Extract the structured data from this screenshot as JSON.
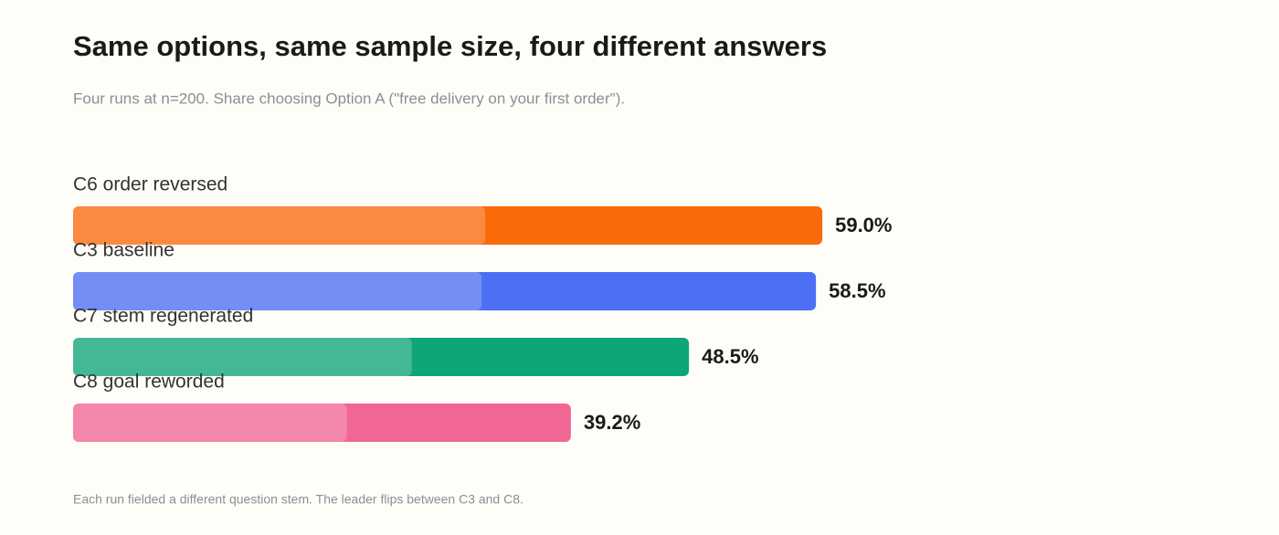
{
  "chart_data": {
    "type": "bar",
    "orientation": "horizontal",
    "title": "Same options, same sample size, four different answers",
    "subtitle": "Four runs at n=200. Share choosing Option A (\"free delivery on your first order\").",
    "categories": [
      "C6 order reversed",
      "C3 baseline",
      "C7 stem regenerated",
      "C8 goal reworded"
    ],
    "values": [
      59.0,
      58.5,
      48.5,
      39.2
    ],
    "value_labels": [
      "59.0%",
      "58.5%",
      "48.5%",
      "39.2%"
    ],
    "colors": [
      "#f96a0a",
      "#4c6ff3",
      "#0ea677",
      "#f06695"
    ],
    "footnote": "Each run fielded a different question stem. The leader flips between C3 and C8."
  }
}
